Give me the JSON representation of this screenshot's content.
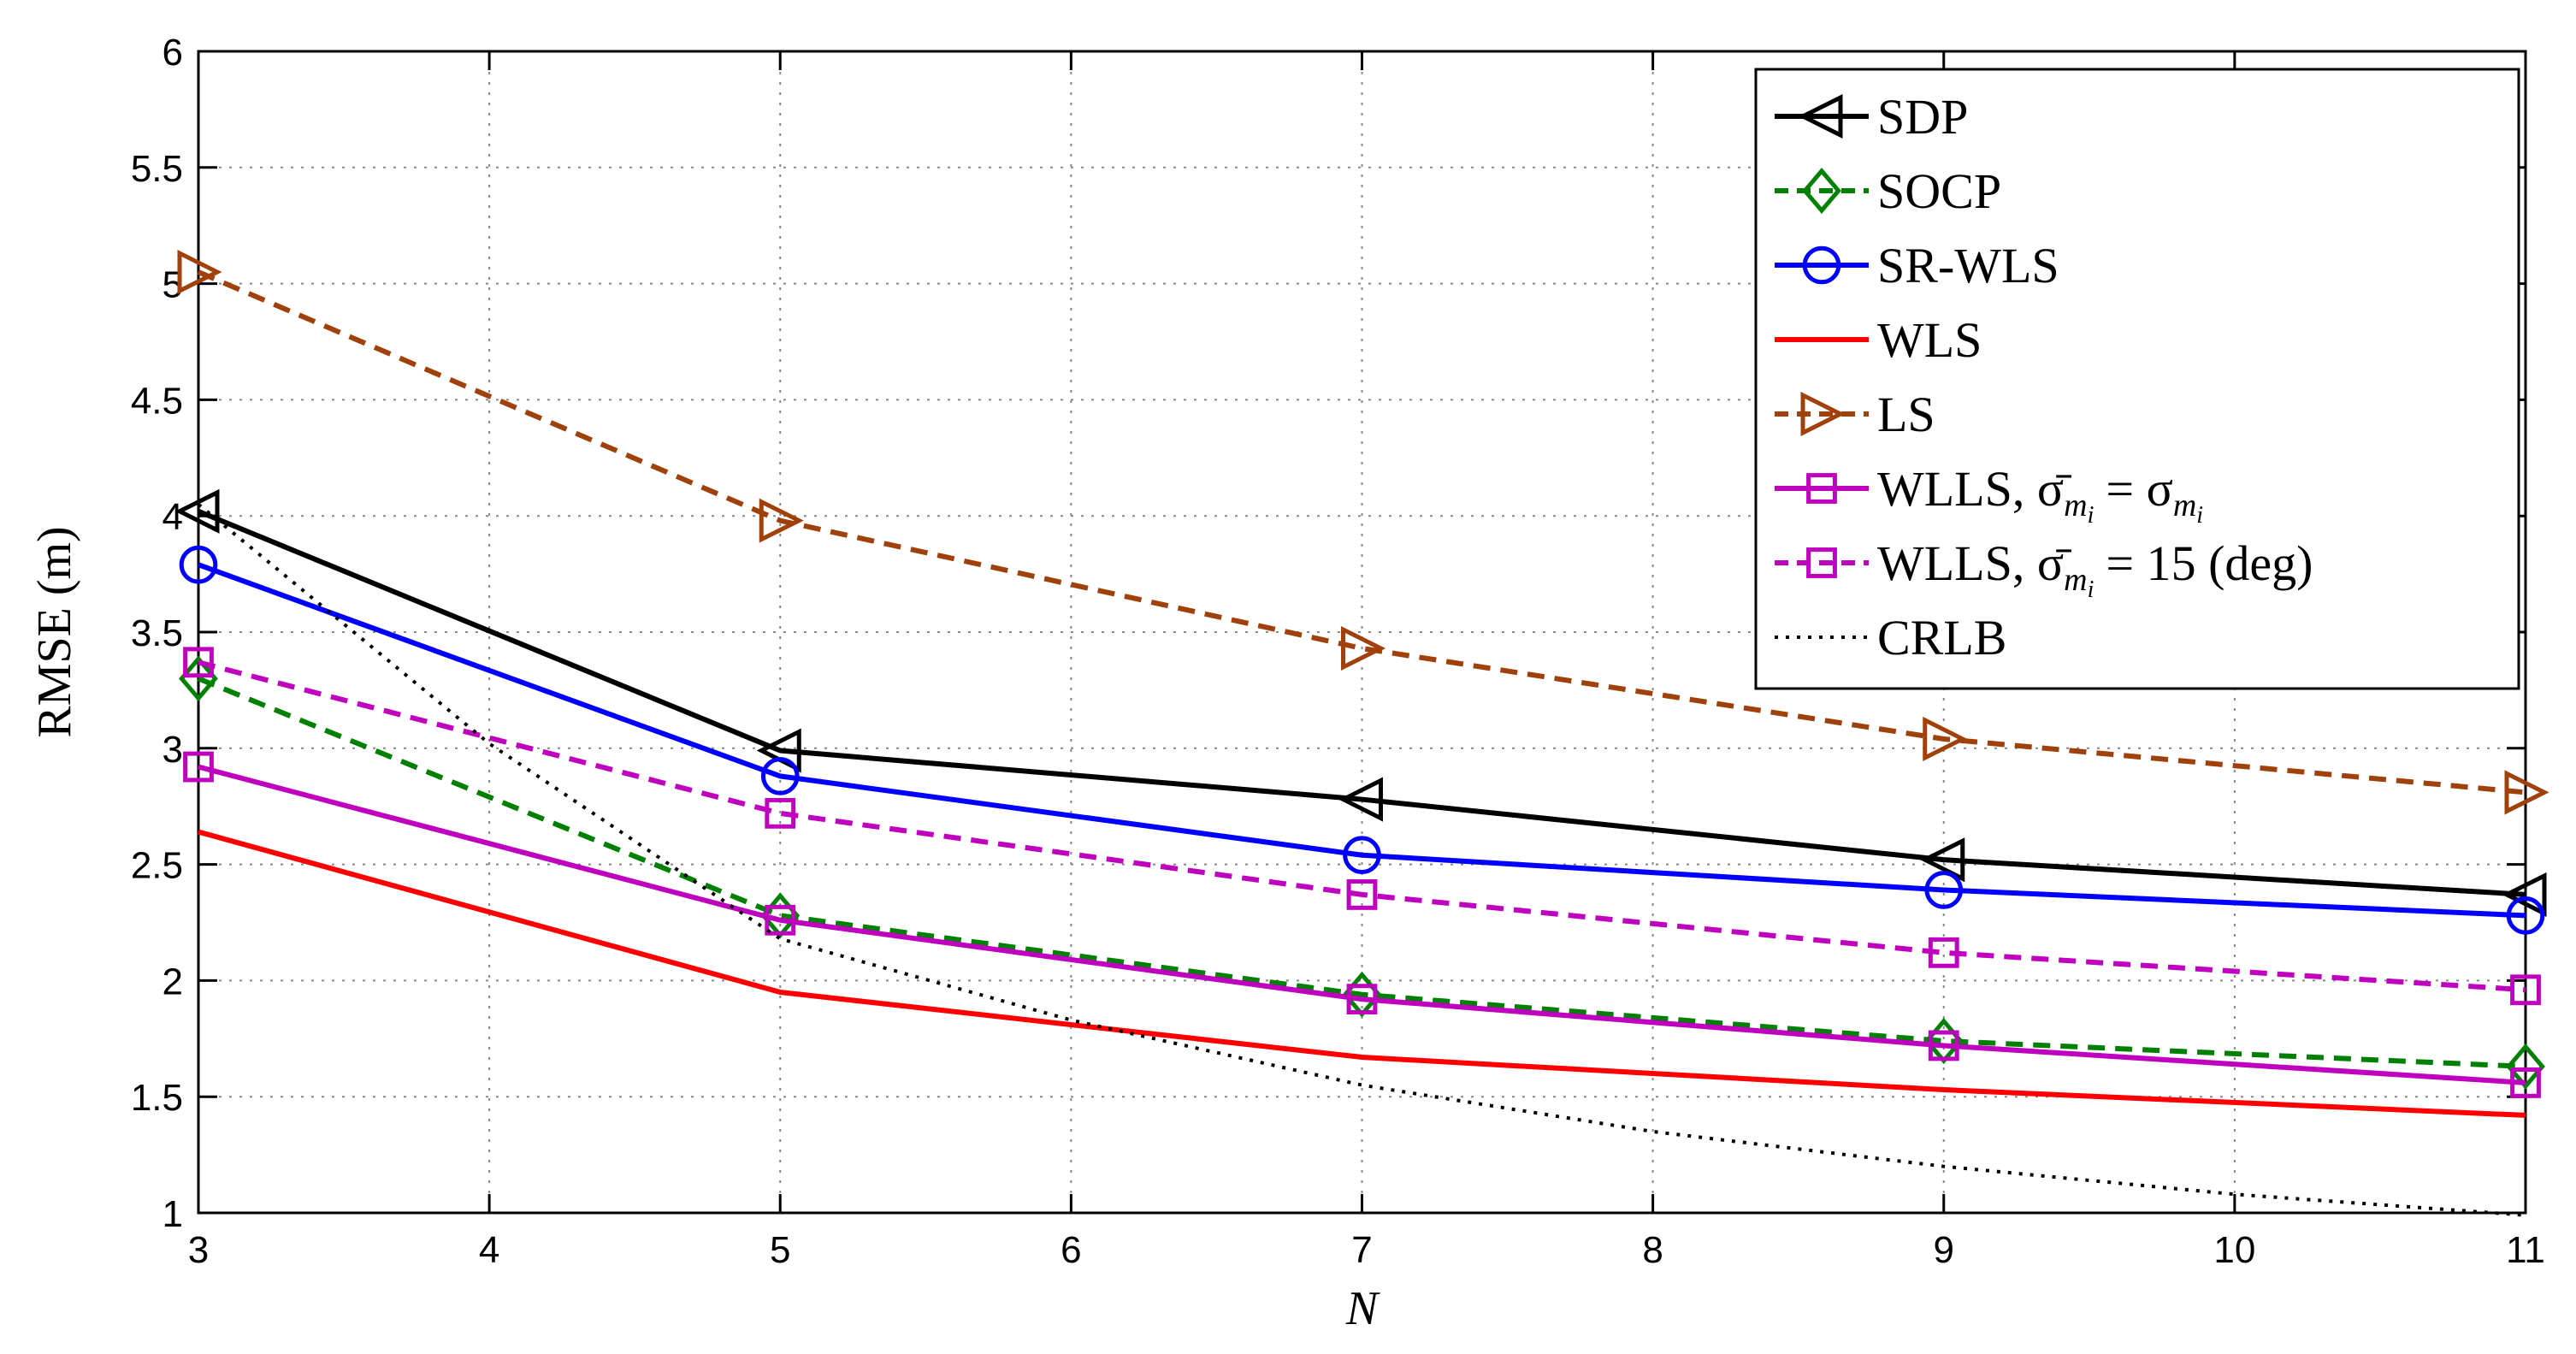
{
  "chart_data": {
    "type": "line",
    "title": "",
    "xlabel": "N",
    "ylabel": "RMSE (m)",
    "xlim": [
      3,
      11
    ],
    "ylim": [
      1,
      6
    ],
    "grid": true,
    "legend_position": "top-right",
    "xticks": [
      3,
      4,
      5,
      6,
      7,
      8,
      9,
      10,
      11
    ],
    "yticks": [
      1,
      1.5,
      2,
      2.5,
      3,
      3.5,
      4,
      4.5,
      5,
      5.5,
      6
    ],
    "xtick_labels": [
      "3",
      "4",
      "5",
      "6",
      "7",
      "8",
      "9",
      "10",
      "11"
    ],
    "ytick_labels": [
      "1",
      "1.5",
      "2",
      "2.5",
      "3",
      "3.5",
      "4",
      "4.5",
      "5",
      "5.5",
      "6"
    ],
    "series": [
      {
        "name": "SDP",
        "x": [
          3,
          5,
          7,
          9,
          11
        ],
        "values": [
          4.02,
          2.99,
          2.78,
          2.52,
          2.37
        ],
        "color": "#000000",
        "dash": "solid",
        "marker": "triangle-left",
        "legend_label": "SDP"
      },
      {
        "name": "SOCP",
        "x": [
          3,
          5,
          7,
          9,
          11
        ],
        "values": [
          3.3,
          2.28,
          1.94,
          1.74,
          1.63
        ],
        "color": "#008000",
        "dash": "dashed",
        "marker": "diamond",
        "legend_label": "SOCP"
      },
      {
        "name": "SR-WLS",
        "x": [
          3,
          5,
          7,
          9,
          11
        ],
        "values": [
          3.79,
          2.88,
          2.54,
          2.39,
          2.28
        ],
        "color": "#0000ff",
        "dash": "solid",
        "marker": "circle",
        "legend_label": "SR-WLS"
      },
      {
        "name": "WLS",
        "x": [
          3,
          5,
          7,
          9,
          11
        ],
        "values": [
          2.64,
          1.95,
          1.67,
          1.53,
          1.42
        ],
        "color": "#ff0000",
        "dash": "solid",
        "marker": "none",
        "legend_label": "WLS"
      },
      {
        "name": "LS",
        "x": [
          3,
          5,
          7,
          9,
          11
        ],
        "values": [
          5.05,
          3.98,
          3.43,
          3.04,
          2.81
        ],
        "color": "#a0400a",
        "dash": "dashed",
        "marker": "triangle-right",
        "legend_label": "LS"
      },
      {
        "name": "WLLS, σ̄_mi = σ_mi",
        "x": [
          3,
          5,
          7,
          9,
          11
        ],
        "values": [
          2.92,
          2.26,
          1.92,
          1.72,
          1.56
        ],
        "color": "#bf00bf",
        "dash": "solid",
        "marker": "square",
        "legend_label": "WLLS, σ̄",
        "legend_math": "= σ"
      },
      {
        "name": "WLLS, σ̄_mi = 15 (deg)",
        "x": [
          3,
          5,
          7,
          9,
          11
        ],
        "values": [
          3.37,
          2.72,
          2.37,
          2.12,
          1.96
        ],
        "color": "#bf00bf",
        "dash": "dashed",
        "marker": "square",
        "legend_label": "WLLS, σ̄",
        "legend_math": "= 15 (deg)"
      },
      {
        "name": "CRLB",
        "x": [
          3,
          4,
          5,
          6,
          7,
          8,
          9,
          10,
          11
        ],
        "values": [
          4.05,
          3.02,
          2.18,
          1.83,
          1.55,
          1.35,
          1.2,
          1.08,
          0.99
        ],
        "color": "#000000",
        "dash": "dotted",
        "marker": "none",
        "legend_label": "CRLB"
      }
    ],
    "subscript_text": "m",
    "subscript_sub": "i"
  }
}
